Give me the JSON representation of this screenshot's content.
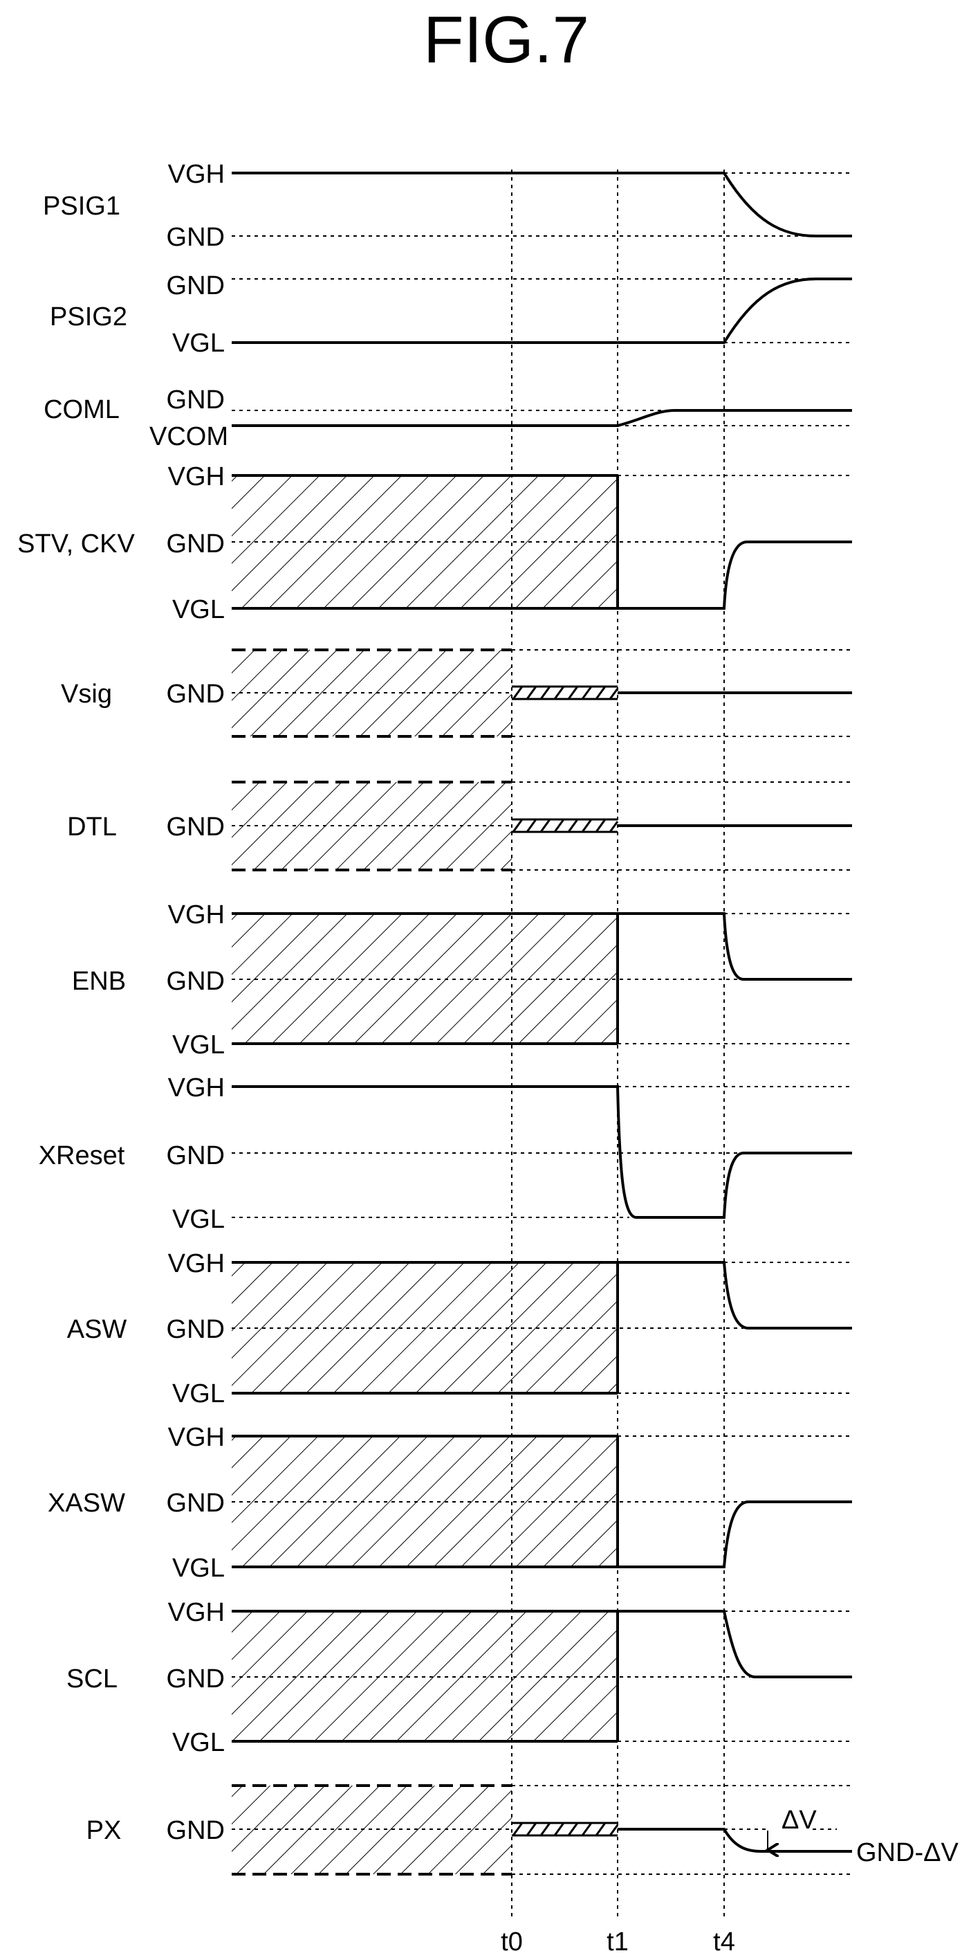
{
  "figure": {
    "title": "FIG.7"
  },
  "time_markers": [
    "t0",
    "t1",
    "t4"
  ],
  "signals": [
    {
      "name": "PSIG1",
      "levels": [
        "VGH",
        "GND"
      ]
    },
    {
      "name": "PSIG2",
      "levels": [
        "GND",
        "VGL"
      ]
    },
    {
      "name": "COML",
      "levels": [
        "GND",
        "VCOM"
      ]
    },
    {
      "name": "STV, CKV",
      "levels": [
        "VGH",
        "GND",
        "VGL"
      ]
    },
    {
      "name": "Vsig",
      "levels": [
        "GND"
      ]
    },
    {
      "name": "DTL",
      "levels": [
        "GND"
      ]
    },
    {
      "name": "ENB",
      "levels": [
        "VGH",
        "GND",
        "VGL"
      ]
    },
    {
      "name": "XReset",
      "levels": [
        "VGH",
        "GND",
        "VGL"
      ]
    },
    {
      "name": "ASW",
      "levels": [
        "VGH",
        "GND",
        "VGL"
      ]
    },
    {
      "name": "XASW",
      "levels": [
        "VGH",
        "GND",
        "VGL"
      ]
    },
    {
      "name": "SCL",
      "levels": [
        "VGH",
        "GND",
        "VGL"
      ]
    },
    {
      "name": "PX",
      "levels": [
        "GND"
      ]
    }
  ],
  "annotations": {
    "delta_v": "ΔV",
    "px_final_level": "GND-ΔV"
  }
}
